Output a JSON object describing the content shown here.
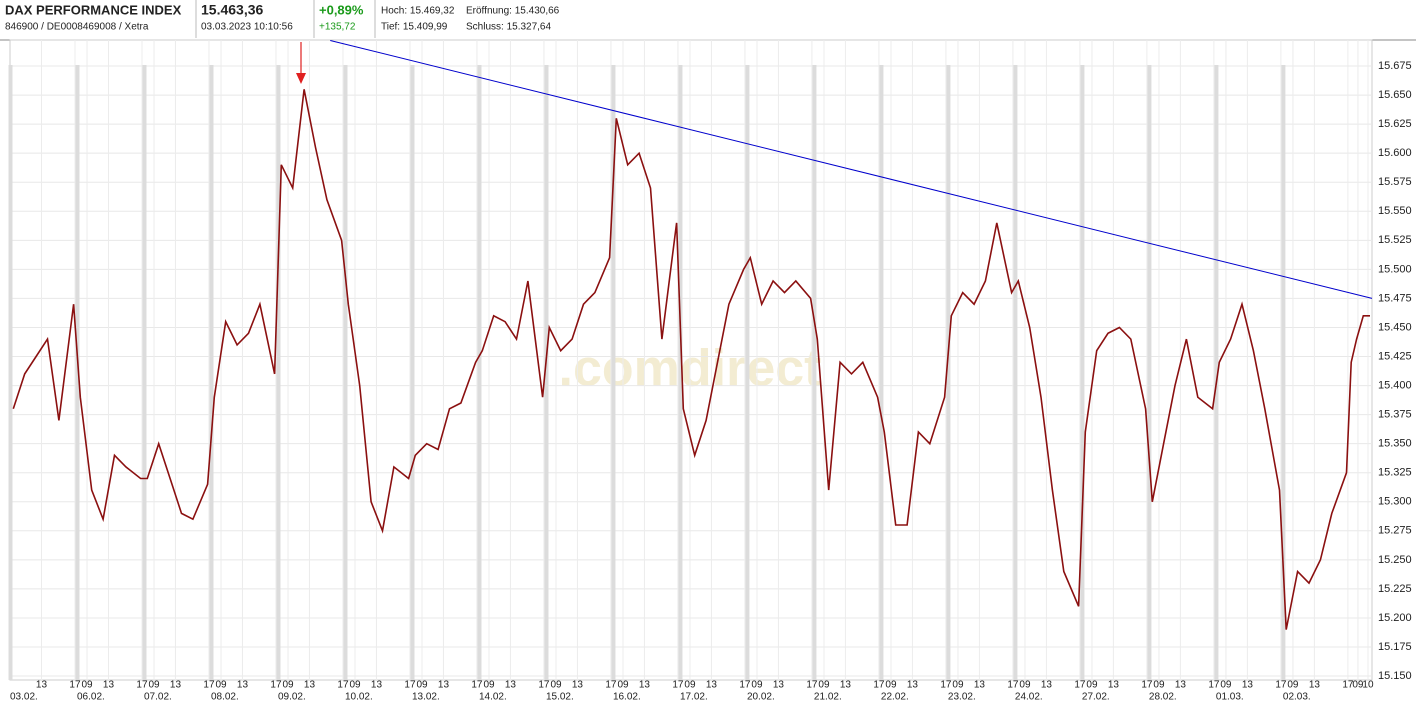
{
  "header": {
    "title": "DAX PERFORMANCE INDEX",
    "subtitle": "846900 / DE0008469008 / Xetra",
    "price": "15.463,36",
    "timestamp": "03.03.2023 10:10:56",
    "change_pct": "+0,89%",
    "change_abs": "+135,72",
    "high": "Hoch: 15.469,32",
    "low": "Tief: 15.409,99",
    "open": "Eröffnung: 15.430,66",
    "close": "Schluss: 15.327,64"
  },
  "chart_data": {
    "type": "line",
    "watermark": ".comdirect",
    "color": "#8b1010",
    "grid": true,
    "categories": [
      "03.02.",
      "06.02.",
      "07.02.",
      "08.02.",
      "09.02.",
      "10.02.",
      "13.02.",
      "14.02.",
      "15.02.",
      "16.02.",
      "17.02.",
      "20.02.",
      "21.02.",
      "22.02.",
      "23.02.",
      "24.02.",
      "27.02.",
      "28.02.",
      "01.03.",
      "02.03."
    ],
    "xlim": [
      0,
      20.33
    ],
    "xticks": [
      {
        "value": 0.47,
        "label": "13"
      },
      {
        "value": 0.97,
        "label": "17"
      },
      {
        "value": 1.15,
        "label": "09"
      },
      {
        "value": 1.47,
        "label": "13"
      },
      {
        "value": 1.97,
        "label": "17"
      },
      {
        "value": 2.15,
        "label": "09"
      },
      {
        "value": 2.47,
        "label": "13"
      },
      {
        "value": 2.97,
        "label": "17"
      },
      {
        "value": 3.15,
        "label": "09"
      },
      {
        "value": 3.47,
        "label": "13"
      },
      {
        "value": 3.97,
        "label": "17"
      },
      {
        "value": 4.15,
        "label": "09"
      },
      {
        "value": 4.47,
        "label": "13"
      },
      {
        "value": 4.97,
        "label": "17"
      },
      {
        "value": 5.15,
        "label": "09"
      },
      {
        "value": 5.47,
        "label": "13"
      },
      {
        "value": 5.97,
        "label": "17"
      },
      {
        "value": 6.15,
        "label": "09"
      },
      {
        "value": 6.47,
        "label": "13"
      },
      {
        "value": 6.97,
        "label": "17"
      },
      {
        "value": 7.15,
        "label": "09"
      },
      {
        "value": 7.47,
        "label": "13"
      },
      {
        "value": 7.97,
        "label": "17"
      },
      {
        "value": 8.15,
        "label": "09"
      },
      {
        "value": 8.47,
        "label": "13"
      },
      {
        "value": 8.97,
        "label": "17"
      },
      {
        "value": 9.15,
        "label": "09"
      },
      {
        "value": 9.47,
        "label": "13"
      },
      {
        "value": 9.97,
        "label": "17"
      },
      {
        "value": 10.15,
        "label": "09"
      },
      {
        "value": 10.47,
        "label": "13"
      },
      {
        "value": 10.97,
        "label": "17"
      },
      {
        "value": 11.15,
        "label": "09"
      },
      {
        "value": 11.47,
        "label": "13"
      },
      {
        "value": 11.97,
        "label": "17"
      },
      {
        "value": 12.15,
        "label": "09"
      },
      {
        "value": 12.47,
        "label": "13"
      },
      {
        "value": 12.97,
        "label": "17"
      },
      {
        "value": 13.15,
        "label": "09"
      },
      {
        "value": 13.47,
        "label": "13"
      },
      {
        "value": 13.97,
        "label": "17"
      },
      {
        "value": 14.15,
        "label": "09"
      },
      {
        "value": 14.47,
        "label": "13"
      },
      {
        "value": 14.97,
        "label": "17"
      },
      {
        "value": 15.15,
        "label": "09"
      },
      {
        "value": 15.47,
        "label": "13"
      },
      {
        "value": 15.97,
        "label": "17"
      },
      {
        "value": 16.15,
        "label": "09"
      },
      {
        "value": 16.47,
        "label": "13"
      },
      {
        "value": 16.97,
        "label": "17"
      },
      {
        "value": 17.15,
        "label": "09"
      },
      {
        "value": 17.47,
        "label": "13"
      },
      {
        "value": 17.97,
        "label": "17"
      },
      {
        "value": 18.15,
        "label": "09"
      },
      {
        "value": 18.47,
        "label": "13"
      },
      {
        "value": 18.97,
        "label": "17"
      },
      {
        "value": 19.15,
        "label": "09"
      },
      {
        "value": 19.47,
        "label": "13"
      },
      {
        "value": 19.97,
        "label": "17"
      },
      {
        "value": 20.12,
        "label": "09"
      },
      {
        "value": 20.27,
        "label": "10"
      }
    ],
    "ylim": [
      15146.6,
      15697.4
    ],
    "yticks": [
      {
        "value": 15150,
        "label": "15.150"
      },
      {
        "value": 15175,
        "label": "15.175"
      },
      {
        "value": 15200,
        "label": "15.200"
      },
      {
        "value": 15225,
        "label": "15.225"
      },
      {
        "value": 15250,
        "label": "15.250"
      },
      {
        "value": 15275,
        "label": "15.275"
      },
      {
        "value": 15300,
        "label": "15.300"
      },
      {
        "value": 15325,
        "label": "15.325"
      },
      {
        "value": 15350,
        "label": "15.350"
      },
      {
        "value": 15375,
        "label": "15.375"
      },
      {
        "value": 15400,
        "label": "15.400"
      },
      {
        "value": 15425,
        "label": "15.425"
      },
      {
        "value": 15450,
        "label": "15.450"
      },
      {
        "value": 15475,
        "label": "15.475"
      },
      {
        "value": 15500,
        "label": "15.500"
      },
      {
        "value": 15525,
        "label": "15.525"
      },
      {
        "value": 15550,
        "label": "15.550"
      },
      {
        "value": 15575,
        "label": "15.575"
      },
      {
        "value": 15600,
        "label": "15.600"
      },
      {
        "value": 15625,
        "label": "15.625"
      },
      {
        "value": 15650,
        "label": "15.650"
      },
      {
        "value": 15675,
        "label": "15.675"
      }
    ],
    "x": [
      0.05,
      0.22,
      0.39,
      0.56,
      0.73,
      0.95,
      1.05,
      1.22,
      1.39,
      1.56,
      1.73,
      1.95,
      2.05,
      2.22,
      2.39,
      2.56,
      2.73,
      2.95,
      3.05,
      3.22,
      3.39,
      3.56,
      3.73,
      3.95,
      4.05,
      4.22,
      4.39,
      4.56,
      4.73,
      4.95,
      5.05,
      5.22,
      5.39,
      5.56,
      5.73,
      5.95,
      6.05,
      6.22,
      6.39,
      6.56,
      6.73,
      6.95,
      7.05,
      7.22,
      7.39,
      7.56,
      7.73,
      7.95,
      8.05,
      8.22,
      8.39,
      8.56,
      8.73,
      8.95,
      9.05,
      9.22,
      9.39,
      9.56,
      9.73,
      9.95,
      10.05,
      10.22,
      10.39,
      10.56,
      10.73,
      10.95,
      11.05,
      11.22,
      11.39,
      11.56,
      11.73,
      11.95,
      12.05,
      12.22,
      12.39,
      12.56,
      12.73,
      12.95,
      13.05,
      13.22,
      13.39,
      13.56,
      13.73,
      13.95,
      14.05,
      14.22,
      14.39,
      14.56,
      14.73,
      14.95,
      15.05,
      15.22,
      15.39,
      15.56,
      15.73,
      15.95,
      16.05,
      16.22,
      16.39,
      16.56,
      16.73,
      16.95,
      17.05,
      17.22,
      17.39,
      17.56,
      17.73,
      17.95,
      18.05,
      18.22,
      18.39,
      18.56,
      18.73,
      18.95,
      19.05,
      19.22,
      19.39,
      19.56,
      19.73,
      19.95,
      20.02,
      20.1,
      20.2,
      20.3
    ],
    "values": [
      15380,
      15410,
      15425,
      15440,
      15370,
      15470,
      15390,
      15310,
      15285,
      15340,
      15330,
      15320,
      15320,
      15350,
      15320,
      15290,
      15285,
      15315,
      15390,
      15455,
      15435,
      15445,
      15470,
      15410,
      15590,
      15570,
      15655,
      15605,
      15560,
      15525,
      15470,
      15400,
      15300,
      15275,
      15330,
      15320,
      15340,
      15350,
      15345,
      15380,
      15385,
      15420,
      15430,
      15460,
      15455,
      15440,
      15490,
      15390,
      15450,
      15430,
      15440,
      15470,
      15480,
      15510,
      15630,
      15590,
      15600,
      15570,
      15440,
      15540,
      15380,
      15340,
      15370,
      15420,
      15470,
      15500,
      15510,
      15470,
      15490,
      15480,
      15490,
      15475,
      15440,
      15310,
      15420,
      15410,
      15420,
      15390,
      15360,
      15280,
      15280,
      15360,
      15350,
      15390,
      15460,
      15480,
      15470,
      15490,
      15540,
      15480,
      15490,
      15450,
      15390,
      15310,
      15240,
      15210,
      15360,
      15430,
      15445,
      15450,
      15440,
      15380,
      15300,
      15350,
      15400,
      15440,
      15390,
      15380,
      15420,
      15440,
      15470,
      15430,
      15380,
      15310,
      15190,
      15240,
      15230,
      15250,
      15290,
      15325,
      15420,
      15440,
      15460,
      15460
    ],
    "trendline": {
      "color": "#0000cc",
      "x": [
        4.78,
        20.33
      ],
      "values": [
        15697,
        15475
      ]
    }
  }
}
